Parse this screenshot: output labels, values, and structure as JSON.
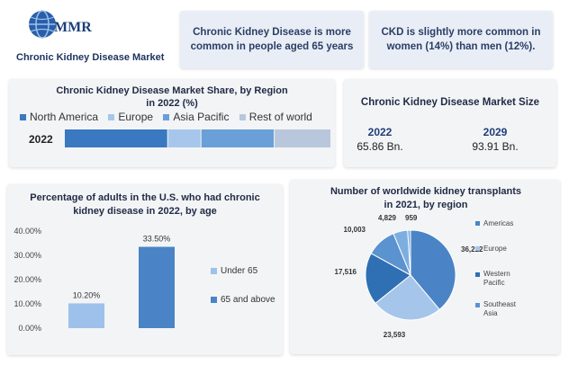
{
  "brand": {
    "logo_text": "MMR",
    "title": "Chronic Kidney Disease Market"
  },
  "facts": [
    "Chronic Kidney Disease is more common in people aged 65 years",
    "CKD is slightly more common in women (14%) than men (12%)."
  ],
  "market_size": {
    "title": "Chronic Kidney Disease Market Size",
    "entries": [
      {
        "year": "2022",
        "value": "65.86 Bn."
      },
      {
        "year": "2029",
        "value": "93.91 Bn."
      }
    ]
  },
  "colors": {
    "north_america": "#3a78c2",
    "europe": "#a7c6ec",
    "asia_pacific": "#6a9fd8",
    "rest_of_world": "#b8c7dc",
    "under_65": "#9dc1ea",
    "above_65": "#4a84c6",
    "americas": "#4a84c6",
    "europe_pie": "#a6c5ea",
    "western_pacific": "#2f6fb4",
    "southeast_asia": "#5b92d0",
    "other": "#7eaee0"
  },
  "chart_data": [
    {
      "type": "bar",
      "orientation": "horizontal",
      "stacked": true,
      "title": "Chronic Kidney Disease Market Share, by Region in 2022 (%)",
      "categories": [
        "2022"
      ],
      "series": [
        {
          "name": "North America",
          "values": [
            31
          ]
        },
        {
          "name": "Europe",
          "values": [
            10
          ]
        },
        {
          "name": "Asia Pacific",
          "values": [
            22
          ]
        },
        {
          "name": "Rest of world",
          "values": [
            17
          ]
        }
      ],
      "legend": "top"
    },
    {
      "type": "bar",
      "title": "Percentage of adults in the U.S. who had chronic kidney disease in 2022, by age",
      "categories": [
        "Under 65",
        "65 and above"
      ],
      "values": [
        10.2,
        33.5
      ],
      "value_labels": [
        "10.20%",
        "33.50%"
      ],
      "y_ticks": [
        "0.00%",
        "10.00%",
        "20.00%",
        "30.00%",
        "40.00%"
      ],
      "ylim": [
        0,
        40
      ],
      "legend": "right"
    },
    {
      "type": "pie",
      "title": "Number of worldwide kidney transplants in 2021, by region",
      "slices": [
        {
          "name": "Americas",
          "value": 36222,
          "label": "36,222"
        },
        {
          "name": "Europe",
          "value": 23593,
          "label": "23,593"
        },
        {
          "name": "Western Pacific",
          "value": 17516,
          "label": "17,516"
        },
        {
          "name": "Southeast Asia",
          "value": 10003,
          "label": "10,003"
        },
        {
          "name": "",
          "value": 4829,
          "label": "4,829"
        },
        {
          "name": "",
          "value": 959,
          "label": "959"
        }
      ],
      "legend_names": [
        "Americas",
        "Europe",
        "Western Pacific",
        "Southeast Asia"
      ],
      "legend": "right"
    }
  ]
}
